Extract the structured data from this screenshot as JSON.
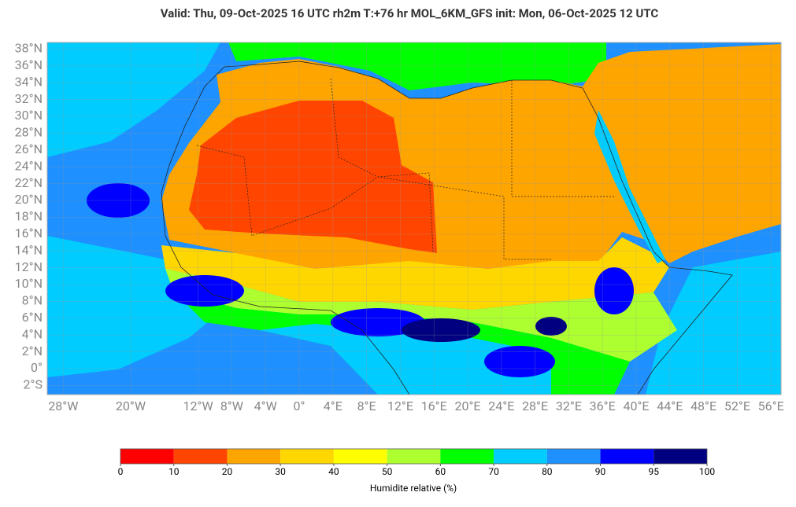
{
  "header": {
    "title": "Valid: Thu, 09-Oct-2025   16 UTC   rh2m   T:+76 hr   MOL_6KM_GFS      init: Mon, 06-Oct-2025   12 UTC"
  },
  "latitudes": [
    {
      "value": 38,
      "label": "38°N"
    },
    {
      "value": 36,
      "label": "36°N"
    },
    {
      "value": 34,
      "label": "34°N"
    },
    {
      "value": 32,
      "label": "32°N"
    },
    {
      "value": 30,
      "label": "30°N"
    },
    {
      "value": 28,
      "label": "28°N"
    },
    {
      "value": 26,
      "label": "26°N"
    },
    {
      "value": 24,
      "label": "24°N"
    },
    {
      "value": 22,
      "label": "22°N"
    },
    {
      "value": 20,
      "label": "20°N"
    },
    {
      "value": 18,
      "label": "18°N"
    },
    {
      "value": 16,
      "label": "16°N"
    },
    {
      "value": 14,
      "label": "14°N"
    },
    {
      "value": 12,
      "label": "12°N"
    },
    {
      "value": 10,
      "label": "10°N"
    },
    {
      "value": 8,
      "label": "8°N"
    },
    {
      "value": 6,
      "label": "6°N"
    },
    {
      "value": 4,
      "label": "4°N"
    },
    {
      "value": 2,
      "label": "2°N"
    },
    {
      "value": 0,
      "label": "0°"
    },
    {
      "value": -2,
      "label": "2°S"
    }
  ],
  "longitudes": [
    {
      "value": -28,
      "label": "28°W"
    },
    {
      "value": -20,
      "label": "20°W"
    },
    {
      "value": -12,
      "label": "12°W"
    },
    {
      "value": -8,
      "label": "8°W"
    },
    {
      "value": -4,
      "label": "4°W"
    },
    {
      "value": 0,
      "label": "0°"
    },
    {
      "value": 4,
      "label": "4°E"
    },
    {
      "value": 8,
      "label": "8°E"
    },
    {
      "value": 12,
      "label": "12°E"
    },
    {
      "value": 16,
      "label": "16°E"
    },
    {
      "value": 20,
      "label": "20°E"
    },
    {
      "value": 24,
      "label": "24°E"
    },
    {
      "value": 28,
      "label": "28°E"
    },
    {
      "value": 32,
      "label": "32°E"
    },
    {
      "value": 36,
      "label": "36°E"
    },
    {
      "value": 40,
      "label": "40°E"
    },
    {
      "value": 44,
      "label": "44°E"
    },
    {
      "value": 48,
      "label": "48°E"
    },
    {
      "value": 52,
      "label": "52°E"
    },
    {
      "value": 56,
      "label": "56°E"
    }
  ],
  "colorbar": {
    "label": "Humidite relative (%)",
    "ticks": [
      0,
      10,
      20,
      30,
      40,
      50,
      60,
      70,
      80,
      90,
      95,
      100
    ],
    "colors": [
      "#ff0000",
      "#ff4500",
      "#ffa500",
      "#ffd700",
      "#ffff00",
      "#adff2f",
      "#00ff00",
      "#00ccff",
      "#1e90ff",
      "#0000ff",
      "#000080"
    ]
  }
}
